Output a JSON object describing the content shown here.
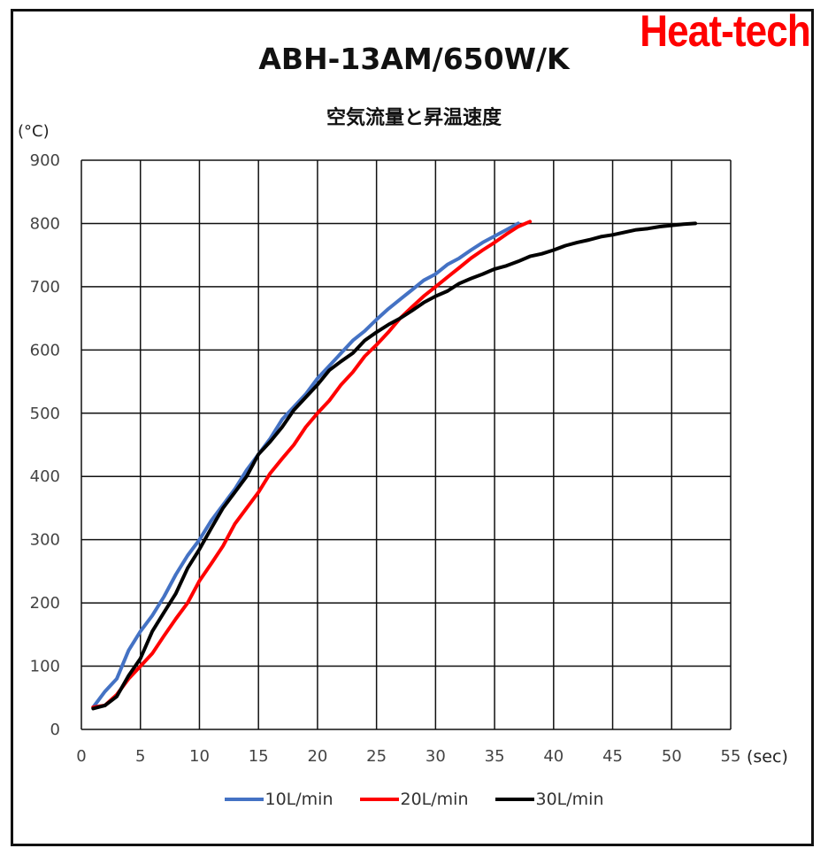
{
  "logo": "Heat-tech",
  "chart_data": {
    "type": "line",
    "title": "ABH-13AM/650W/K",
    "subtitle": "空気流量と昇温速度",
    "ylabel": "(°C)",
    "xlabel": "(sec)",
    "xlim": [
      0,
      55
    ],
    "ylim": [
      0,
      900
    ],
    "x_ticks": [
      0,
      5,
      10,
      15,
      20,
      25,
      30,
      35,
      40,
      45,
      50,
      55
    ],
    "y_ticks": [
      0,
      100,
      200,
      300,
      400,
      500,
      600,
      700,
      800,
      900
    ],
    "grid": true,
    "legend_position": "bottom",
    "series": [
      {
        "name": "10L/min",
        "color": "#4472C4",
        "points": [
          [
            1,
            35
          ],
          [
            2,
            60
          ],
          [
            3,
            80
          ],
          [
            4,
            125
          ],
          [
            5,
            155
          ],
          [
            6,
            180
          ],
          [
            7,
            210
          ],
          [
            8,
            245
          ],
          [
            9,
            275
          ],
          [
            10,
            300
          ],
          [
            11,
            330
          ],
          [
            12,
            355
          ],
          [
            13,
            380
          ],
          [
            14,
            410
          ],
          [
            15,
            435
          ],
          [
            16,
            460
          ],
          [
            17,
            490
          ],
          [
            18,
            510
          ],
          [
            19,
            530
          ],
          [
            20,
            555
          ],
          [
            21,
            575
          ],
          [
            22,
            595
          ],
          [
            23,
            615
          ],
          [
            24,
            630
          ],
          [
            25,
            648
          ],
          [
            26,
            665
          ],
          [
            27,
            680
          ],
          [
            28,
            695
          ],
          [
            29,
            710
          ],
          [
            30,
            720
          ],
          [
            31,
            735
          ],
          [
            32,
            745
          ],
          [
            33,
            758
          ],
          [
            34,
            770
          ],
          [
            35,
            780
          ],
          [
            36,
            790
          ],
          [
            37,
            800
          ]
        ]
      },
      {
        "name": "20L/min",
        "color": "#FF0000",
        "points": [
          [
            1,
            35
          ],
          [
            2,
            38
          ],
          [
            3,
            55
          ],
          [
            4,
            80
          ],
          [
            5,
            100
          ],
          [
            6,
            120
          ],
          [
            7,
            148
          ],
          [
            8,
            175
          ],
          [
            9,
            200
          ],
          [
            10,
            235
          ],
          [
            11,
            262
          ],
          [
            12,
            290
          ],
          [
            13,
            325
          ],
          [
            14,
            350
          ],
          [
            15,
            375
          ],
          [
            16,
            405
          ],
          [
            17,
            428
          ],
          [
            18,
            450
          ],
          [
            19,
            478
          ],
          [
            20,
            500
          ],
          [
            21,
            520
          ],
          [
            22,
            545
          ],
          [
            23,
            565
          ],
          [
            24,
            590
          ],
          [
            25,
            608
          ],
          [
            26,
            628
          ],
          [
            27,
            650
          ],
          [
            28,
            668
          ],
          [
            29,
            685
          ],
          [
            30,
            700
          ],
          [
            31,
            715
          ],
          [
            32,
            730
          ],
          [
            33,
            745
          ],
          [
            34,
            758
          ],
          [
            35,
            770
          ],
          [
            36,
            783
          ],
          [
            37,
            795
          ],
          [
            38,
            803
          ]
        ]
      },
      {
        "name": "30L/min",
        "color": "#000000",
        "points": [
          [
            1,
            33
          ],
          [
            2,
            38
          ],
          [
            3,
            52
          ],
          [
            4,
            85
          ],
          [
            5,
            112
          ],
          [
            6,
            155
          ],
          [
            7,
            185
          ],
          [
            8,
            215
          ],
          [
            9,
            255
          ],
          [
            10,
            285
          ],
          [
            11,
            318
          ],
          [
            12,
            350
          ],
          [
            13,
            375
          ],
          [
            14,
            400
          ],
          [
            15,
            435
          ],
          [
            16,
            455
          ],
          [
            17,
            478
          ],
          [
            18,
            505
          ],
          [
            19,
            525
          ],
          [
            20,
            545
          ],
          [
            21,
            568
          ],
          [
            22,
            582
          ],
          [
            23,
            595
          ],
          [
            24,
            615
          ],
          [
            25,
            628
          ],
          [
            26,
            640
          ],
          [
            27,
            650
          ],
          [
            28,
            662
          ],
          [
            29,
            675
          ],
          [
            30,
            685
          ],
          [
            31,
            693
          ],
          [
            32,
            705
          ],
          [
            33,
            713
          ],
          [
            34,
            720
          ],
          [
            35,
            728
          ],
          [
            36,
            733
          ],
          [
            37,
            740
          ],
          [
            38,
            748
          ],
          [
            39,
            752
          ],
          [
            40,
            758
          ],
          [
            41,
            765
          ],
          [
            42,
            770
          ],
          [
            43,
            774
          ],
          [
            44,
            779
          ],
          [
            45,
            782
          ],
          [
            46,
            786
          ],
          [
            47,
            790
          ],
          [
            48,
            792
          ],
          [
            49,
            795
          ],
          [
            50,
            797
          ],
          [
            51,
            799
          ],
          [
            52,
            800
          ]
        ]
      }
    ]
  }
}
